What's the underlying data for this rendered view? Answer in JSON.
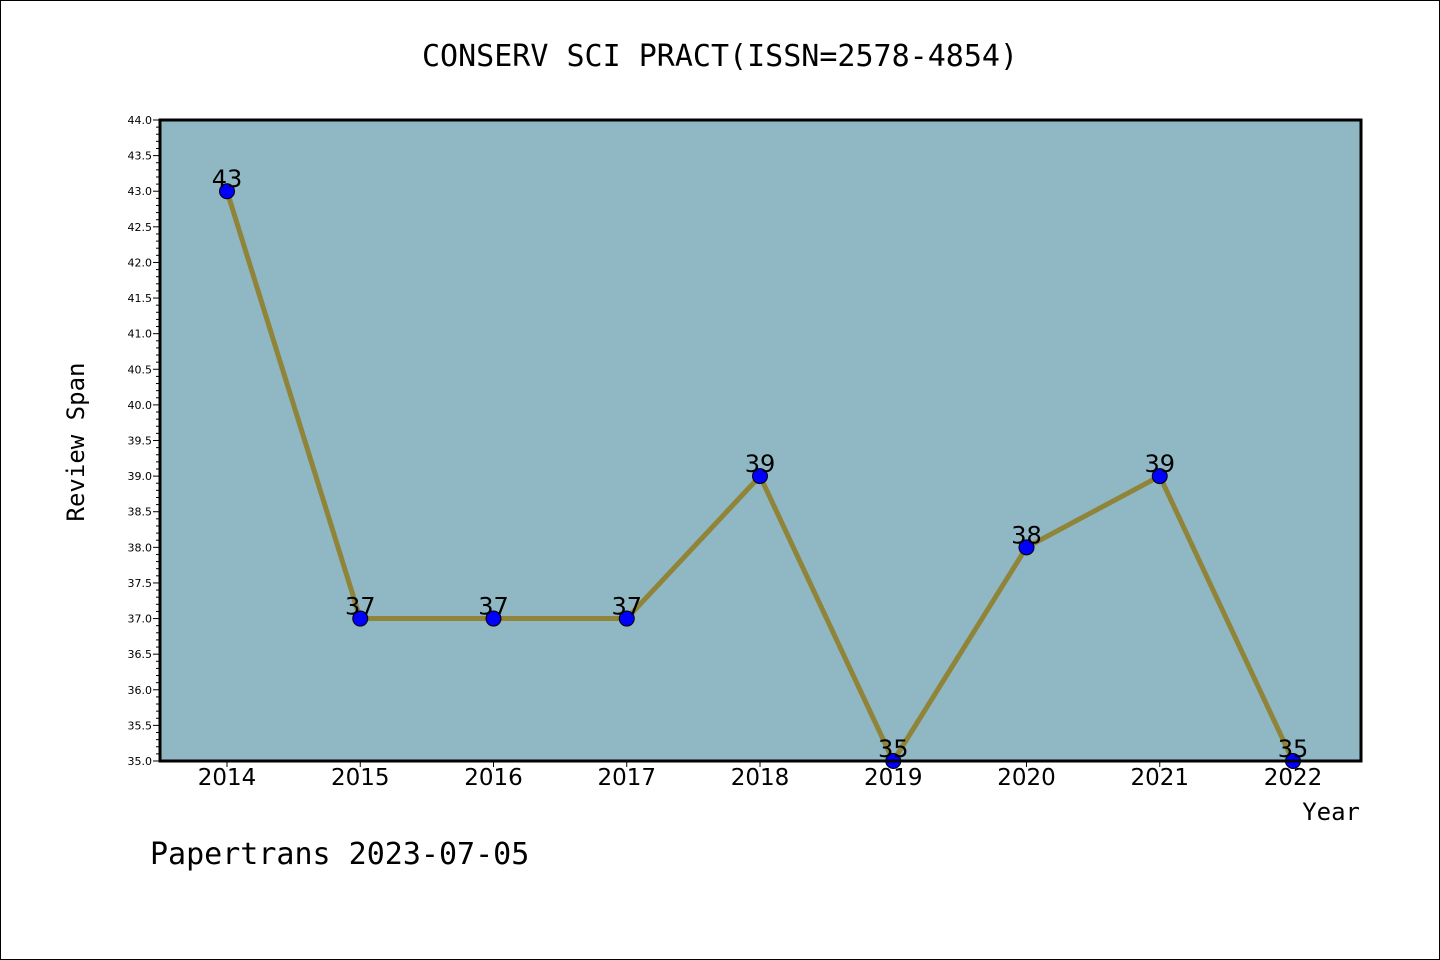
{
  "footer": {
    "text": "Papertrans 2023-07-05"
  },
  "chart_data": {
    "type": "line",
    "title": "CONSERV SCI PRACT(ISSN=2578-4854)",
    "xlabel": "Year",
    "ylabel": "Review Span",
    "categories": [
      "2014",
      "2015",
      "2016",
      "2017",
      "2018",
      "2019",
      "2020",
      "2021",
      "2022"
    ],
    "series": [
      {
        "values": [
          43,
          37,
          37,
          37,
          39,
          35,
          38,
          39,
          35
        ]
      }
    ],
    "data_labels": [
      "43",
      "37",
      "37",
      "37",
      "39",
      "35",
      "38",
      "39",
      "35"
    ],
    "ylim": [
      35.0,
      44.0
    ],
    "yticks": [
      "35.0",
      "35.5",
      "36.0",
      "36.5",
      "37.0",
      "37.5",
      "38.0",
      "38.5",
      "39.0",
      "39.5",
      "40.0",
      "40.5",
      "41.0",
      "41.5",
      "42.0",
      "42.5",
      "43.0",
      "43.5",
      "44.0"
    ],
    "grid": false,
    "legend": "none",
    "colors": {
      "plot_background": "#8fb7c4",
      "line": "#8f8438",
      "marker": "#0000ff"
    }
  }
}
